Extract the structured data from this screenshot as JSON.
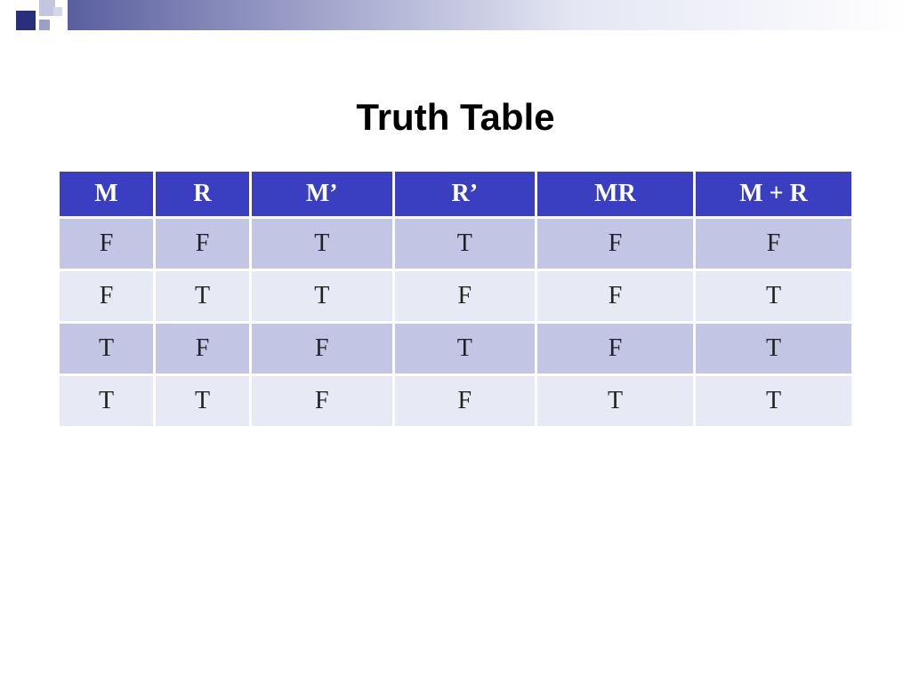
{
  "title": "Truth Table",
  "title_fontsize": 42,
  "table": {
    "type": "table",
    "header_bg": "#3a3fc1",
    "header_fg": "#ffffff",
    "row_bg_odd": "#c2c6e4",
    "row_bg_even": "#e7e9f5",
    "cell_fg": "#222222",
    "header_fontsize": 28,
    "cell_fontsize": 28,
    "col_widths_pct": [
      12,
      12,
      18,
      18,
      20,
      20
    ],
    "columns": [
      "M",
      "R",
      "M’",
      "R’",
      "MR",
      "M + R"
    ],
    "rows": [
      [
        "F",
        "F",
        "T",
        "T",
        "F",
        "F"
      ],
      [
        "F",
        "T",
        "T",
        "F",
        "F",
        "T"
      ],
      [
        "T",
        "F",
        "F",
        "T",
        "F",
        "T"
      ],
      [
        "T",
        "T",
        "F",
        "F",
        "T",
        "T"
      ]
    ]
  }
}
